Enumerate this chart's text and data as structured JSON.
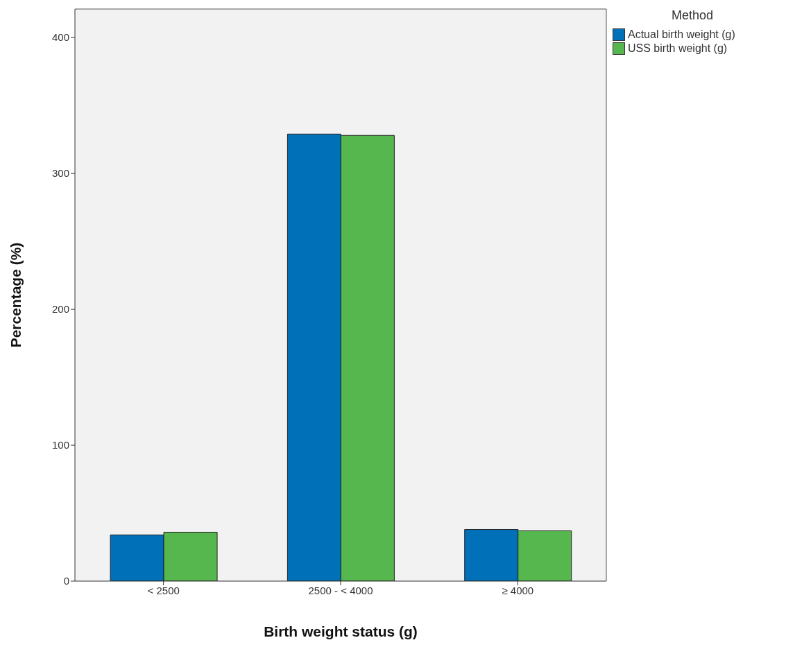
{
  "chart_data": {
    "type": "bar",
    "xlabel": "Birth weight status (g)",
    "ylabel": "Percentage (%)",
    "legend_title": "Method",
    "categories": [
      "< 2500",
      "2500 - < 4000",
      "≥ 4000"
    ],
    "series": [
      {
        "name": "Actual birth weight (g)",
        "color": "#0070b8",
        "values": [
          34,
          329,
          38
        ]
      },
      {
        "name": "USS birth weight (g)",
        "color": "#55b74d",
        "values": [
          36,
          328,
          37
        ]
      }
    ],
    "ylim": [
      0,
      421
    ],
    "yticks": [
      0,
      100,
      200,
      300,
      400
    ],
    "grid": false,
    "legend": "top right"
  }
}
